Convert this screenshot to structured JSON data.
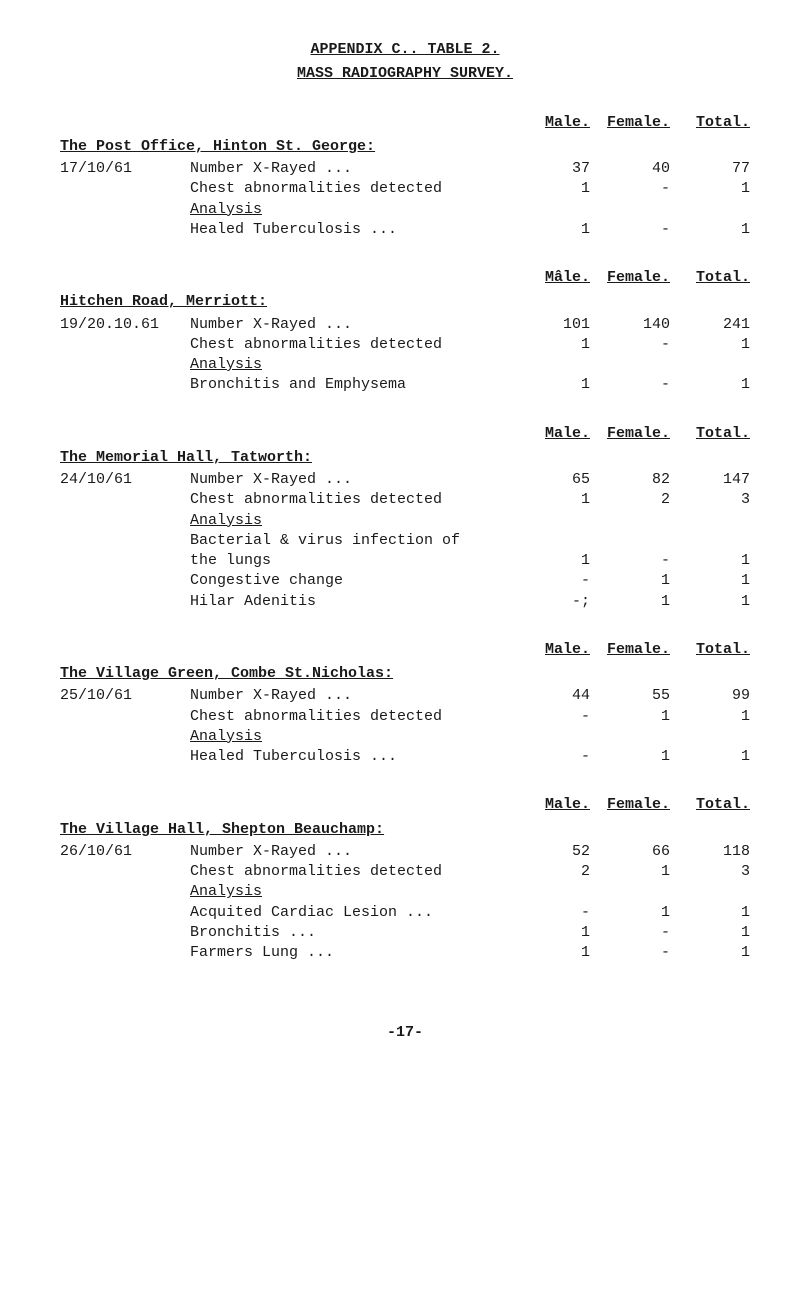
{
  "titles": {
    "line1": "APPENDIX C.. TABLE 2.",
    "line2": "MASS  RADIOGRAPHY  SURVEY."
  },
  "col_labels": {
    "male": "Male.",
    "male_caret": "Mâle.",
    "female": "Female.",
    "total": "Total."
  },
  "sections": [
    {
      "heading": "The Post Office, Hinton St. George:",
      "date": "17/10/61",
      "rows": [
        {
          "desc": "Number X-Rayed         ...",
          "m": "37",
          "f": "40",
          "t": "77"
        },
        {
          "desc": "Chest abnormalities detected",
          "m": "1",
          "f": "-",
          "t": "1"
        }
      ],
      "analysis_label": "Analysis",
      "analysis_rows": [
        {
          "desc": "Healed Tuberculosis    ...",
          "m": "1",
          "f": "-",
          "t": "1"
        }
      ]
    },
    {
      "heading": "Hitchen Road, Merriott:",
      "date": "19/20.10.61",
      "rows": [
        {
          "desc": "Number X-Rayed         ...",
          "m": "101",
          "f": "140",
          "t": "241"
        },
        {
          "desc": "Chest abnormalities detected",
          "m": "1",
          "f": "-",
          "t": "1"
        }
      ],
      "analysis_label": "Analysis",
      "analysis_rows": [
        {
          "desc": "Bronchitis and Emphysema",
          "m": "1",
          "f": "-",
          "t": "1"
        }
      ]
    },
    {
      "heading": "The Memorial Hall, Tatworth:",
      "date": "24/10/61",
      "rows": [
        {
          "desc": "Number X-Rayed         ...",
          "m": "65",
          "f": "82",
          "t": "147"
        },
        {
          "desc": "Chest abnormalities detected",
          "m": "1",
          "f": "2",
          "t": "3"
        }
      ],
      "analysis_label": "Analysis",
      "analysis_rows": [
        {
          "desc": "Bacterial & virus infection of",
          "m": "",
          "f": "",
          "t": ""
        },
        {
          "desc": "  the lungs",
          "m": "1",
          "f": "-",
          "t": "1"
        },
        {
          "desc": "Congestive change",
          "m": "-",
          "f": "1",
          "t": "1"
        },
        {
          "desc": "Hilar Adenitis",
          "m": "-;",
          "f": "1",
          "t": "1"
        }
      ]
    },
    {
      "heading": "The Village Green, Combe St.Nicholas:",
      "date": "25/10/61",
      "rows": [
        {
          "desc": "Number X-Rayed         ...",
          "m": "44",
          "f": "55",
          "t": "99"
        },
        {
          "desc": "Chest abnormalities detected",
          "m": "-",
          "f": "1",
          "t": "1"
        }
      ],
      "analysis_label": "Analysis",
      "analysis_rows": [
        {
          "desc": "Healed Tuberculosis    ...",
          "m": "-",
          "f": "1",
          "t": "1"
        }
      ]
    },
    {
      "heading": "The Village Hall, Shepton Beauchamp:",
      "date": "26/10/61",
      "rows": [
        {
          "desc": "Number X-Rayed         ...",
          "m": "52",
          "f": "66",
          "t": "118"
        },
        {
          "desc": "Chest abnormalities detected",
          "m": "2",
          "f": "1",
          "t": "3"
        }
      ],
      "analysis_label": "Analysis",
      "analysis_rows": [
        {
          "desc": "Acquited Cardiac Lesion ...",
          "m": "-",
          "f": "1",
          "t": "1"
        },
        {
          "desc": "Bronchitis             ...",
          "m": "1",
          "f": "-",
          "t": "1"
        },
        {
          "desc": "Farmers Lung           ...",
          "m": "1",
          "f": "-",
          "t": "1"
        }
      ]
    }
  ],
  "page_number": "-17-"
}
